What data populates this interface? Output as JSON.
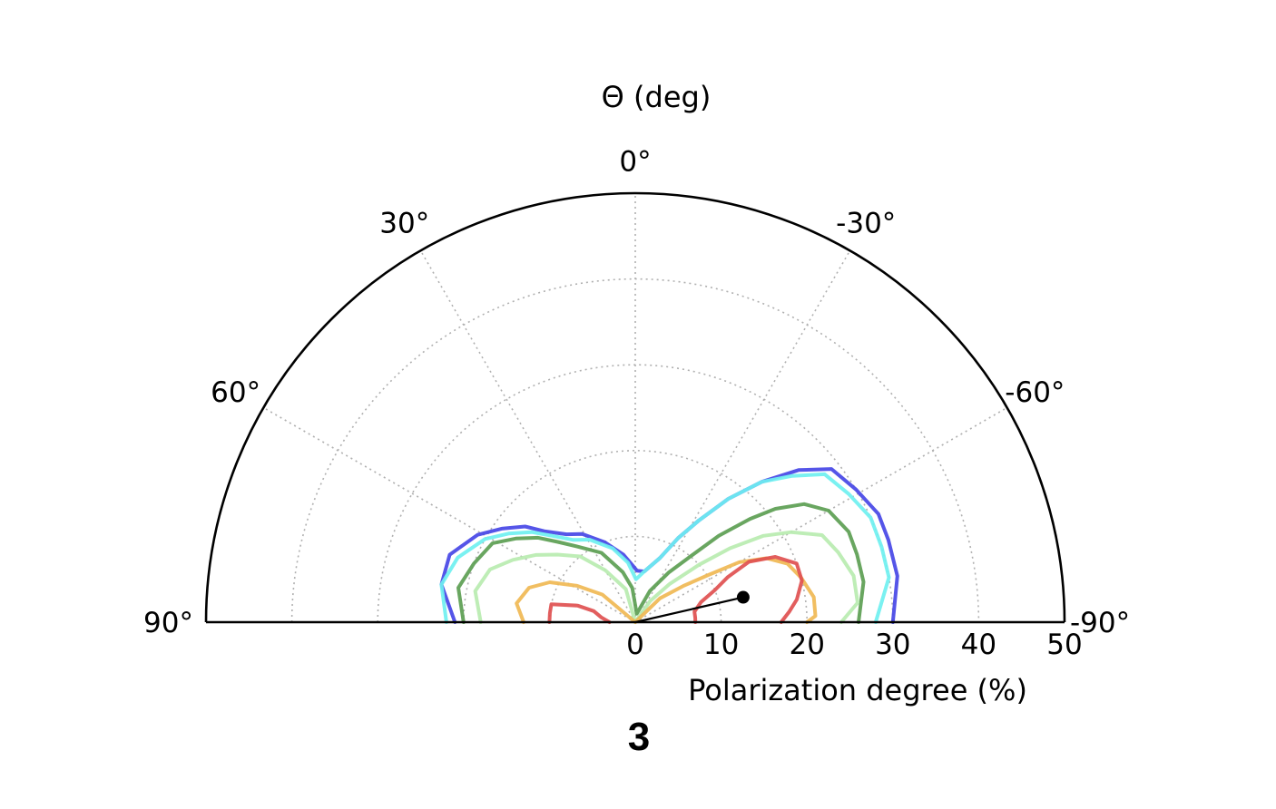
{
  "chart_data": {
    "type": "polar-contour",
    "panel_label": "3",
    "theta_title": "Θ (deg)",
    "r_title": "Polarization degree (%)",
    "theta_range": [
      90,
      -90
    ],
    "r_range": [
      0,
      50
    ],
    "theta_tick_values": [
      90,
      60,
      30,
      0,
      -30,
      -60,
      -90
    ],
    "theta_tick_labels": [
      "90°",
      "60°",
      "30°",
      "0°",
      "-30°",
      "-60°",
      "-90°"
    ],
    "r_tick_values": [
      0,
      10,
      20,
      30,
      40,
      50
    ],
    "r_tick_labels": [
      "0",
      "10",
      "20",
      "30",
      "40",
      "50"
    ],
    "grid": true,
    "colors": {
      "axis": "#000000",
      "grid": "#b0b0b0",
      "marker": "#000000"
    },
    "contours": [
      {
        "color": "#4646e6",
        "points": [
          [
            21,
            90
          ],
          [
            23,
            79
          ],
          [
            23,
            70
          ],
          [
            21,
            61
          ],
          [
            19,
            55
          ],
          [
            17,
            49
          ],
          [
            15,
            45
          ],
          [
            13,
            38
          ],
          [
            12,
            31
          ],
          [
            10,
            21
          ],
          [
            8,
            10
          ],
          [
            7,
            5
          ],
          [
            6,
            -2
          ],
          [
            6,
            -10
          ],
          [
            8,
            -21
          ],
          [
            11,
            -27
          ],
          [
            14,
            -32
          ],
          [
            18,
            -37
          ],
          [
            22,
            -42
          ],
          [
            26,
            -47
          ],
          [
            29,
            -52
          ],
          [
            30,
            -59
          ],
          [
            31,
            -66
          ],
          [
            31,
            -72
          ],
          [
            31,
            -80
          ],
          [
            30,
            -90
          ]
        ]
      },
      {
        "color": "#6ff0f0",
        "points": [
          [
            22,
            90
          ],
          [
            23,
            79
          ],
          [
            22,
            70
          ],
          [
            20,
            61
          ],
          [
            18,
            55
          ],
          [
            16,
            49
          ],
          [
            14,
            44
          ],
          [
            12,
            37
          ],
          [
            11,
            29
          ],
          [
            9,
            17
          ],
          [
            7,
            7
          ],
          [
            5,
            -1
          ],
          [
            6,
            -10
          ],
          [
            8,
            -21
          ],
          [
            11,
            -27
          ],
          [
            14,
            -32
          ],
          [
            18,
            -37
          ],
          [
            22,
            -42
          ],
          [
            25,
            -47
          ],
          [
            28,
            -52
          ],
          [
            29,
            -59
          ],
          [
            30,
            -66
          ],
          [
            30,
            -73
          ],
          [
            30,
            -80
          ],
          [
            28,
            -90
          ]
        ]
      },
      {
        "color": "#5c9e52",
        "points": [
          [
            20,
            90
          ],
          [
            21,
            79
          ],
          [
            20,
            70
          ],
          [
            19,
            61
          ],
          [
            17,
            55
          ],
          [
            15,
            49
          ],
          [
            13,
            44
          ],
          [
            11,
            37
          ],
          [
            9,
            26
          ],
          [
            6,
            14
          ],
          [
            4,
            5
          ],
          [
            1,
            -10
          ],
          [
            4,
            -25
          ],
          [
            7,
            -34
          ],
          [
            10,
            -40
          ],
          [
            14,
            -44
          ],
          [
            18,
            -48
          ],
          [
            21,
            -51
          ],
          [
            24,
            -55
          ],
          [
            26,
            -60
          ],
          [
            27,
            -67
          ],
          [
            27,
            -73
          ],
          [
            27,
            -80
          ],
          [
            26,
            -90
          ]
        ]
      },
      {
        "color": "#b8ecb0",
        "points": [
          [
            18,
            90
          ],
          [
            19,
            79
          ],
          [
            18,
            70
          ],
          [
            16,
            63
          ],
          [
            14,
            56
          ],
          [
            12,
            49
          ],
          [
            10,
            40
          ],
          [
            7,
            30
          ],
          [
            4,
            16
          ],
          [
            0,
            0
          ],
          [
            3,
            -35
          ],
          [
            6,
            -42
          ],
          [
            10,
            -48
          ],
          [
            14,
            -52
          ],
          [
            18,
            -56
          ],
          [
            21,
            -60
          ],
          [
            24,
            -65
          ],
          [
            25,
            -71
          ],
          [
            26,
            -78
          ],
          [
            26,
            -85
          ],
          [
            24,
            -90
          ]
        ]
      },
      {
        "color": "#f0b854",
        "points": [
          [
            13,
            90
          ],
          [
            14,
            81
          ],
          [
            13,
            72
          ],
          [
            11,
            65
          ],
          [
            8,
            58
          ],
          [
            5,
            50
          ],
          [
            0,
            0
          ],
          [
            4,
            -46
          ],
          [
            7,
            -53
          ],
          [
            10,
            -57
          ],
          [
            14,
            -60
          ],
          [
            17,
            -64
          ],
          [
            19,
            -69
          ],
          [
            20,
            -75
          ],
          [
            21,
            -82
          ],
          [
            21,
            -88
          ],
          [
            20,
            -90
          ]
        ]
      },
      {
        "color": "#e05050",
        "points": [
          [
            10,
            90
          ],
          [
            10,
            84
          ],
          [
            10,
            78
          ],
          [
            7,
            74
          ],
          [
            5,
            75
          ],
          [
            4,
            82
          ],
          [
            3,
            90
          ]
        ]
      },
      {
        "color": "#e05050",
        "points": [
          [
            7,
            -90
          ],
          [
            7,
            -86
          ],
          [
            7,
            -80
          ],
          [
            8,
            -73
          ],
          [
            10,
            -68
          ],
          [
            12,
            -64
          ],
          [
            15,
            -62
          ],
          [
            18,
            -65
          ],
          [
            20,
            -70
          ],
          [
            20,
            -76
          ],
          [
            19,
            -82
          ],
          [
            18,
            -86
          ],
          [
            17,
            -90
          ]
        ]
      }
    ],
    "marker": {
      "r": 12.9,
      "theta": -77
    }
  }
}
